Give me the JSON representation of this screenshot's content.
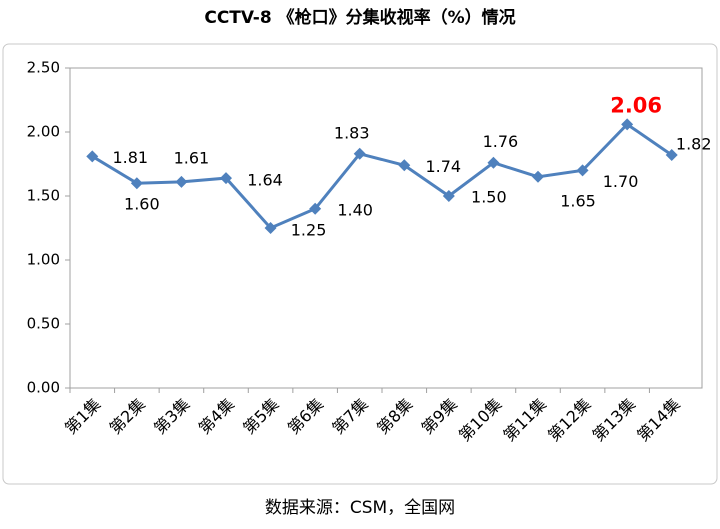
{
  "chart_data": {
    "type": "line",
    "title": "CCTV-8 《枪口》分集收视率（%）情况",
    "source": "数据来源：CSM，全国网",
    "categories": [
      "第1集",
      "第2集",
      "第3集",
      "第4集",
      "第5集",
      "第6集",
      "第7集",
      "第8集",
      "第9集",
      "第10集",
      "第11集",
      "第12集",
      "第13集",
      "第14集"
    ],
    "series": [
      {
        "name": "收视率",
        "color": "#4f81bd",
        "values": [
          1.81,
          1.6,
          1.61,
          1.64,
          1.25,
          1.4,
          1.83,
          1.74,
          1.5,
          1.76,
          1.65,
          1.7,
          2.06,
          1.82
        ],
        "value_labels": [
          "1.81",
          "1.60",
          "1.61",
          "1.64",
          "1.25",
          "1.40",
          "1.83",
          "1.74",
          "1.50",
          "1.76",
          "1.65",
          "1.70",
          "2.06",
          "1.82"
        ]
      }
    ],
    "highlight_color": "#ff0000",
    "ylim": [
      0,
      2.5
    ],
    "yticks": [
      {
        "value": 0,
        "label": "0.00"
      },
      {
        "value": 0.5,
        "label": "0.50"
      },
      {
        "value": 1,
        "label": "1.00"
      },
      {
        "value": 1.5,
        "label": "1.50"
      },
      {
        "value": 2,
        "label": "2.00"
      },
      {
        "value": 2.5,
        "label": "2.50"
      }
    ],
    "grid": false
  }
}
